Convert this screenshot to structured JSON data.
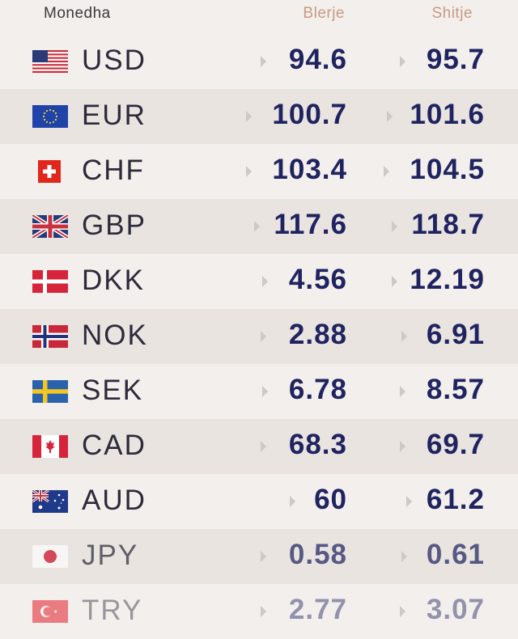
{
  "header": {
    "currency": "Monedha",
    "buy": "Blerje",
    "sell": "Shitje"
  },
  "rows": [
    {
      "code": "USD",
      "flag": "us-flag-icon",
      "buy": "94.6",
      "sell": "95.7"
    },
    {
      "code": "EUR",
      "flag": "eu-flag-icon",
      "buy": "100.7",
      "sell": "101.6"
    },
    {
      "code": "CHF",
      "flag": "ch-flag-icon",
      "buy": "103.4",
      "sell": "104.5"
    },
    {
      "code": "GBP",
      "flag": "gb-flag-icon",
      "buy": "117.6",
      "sell": "118.7"
    },
    {
      "code": "DKK",
      "flag": "dk-flag-icon",
      "buy": "4.56",
      "sell": "12.19"
    },
    {
      "code": "NOK",
      "flag": "no-flag-icon",
      "buy": "2.88",
      "sell": "6.91"
    },
    {
      "code": "SEK",
      "flag": "se-flag-icon",
      "buy": "6.78",
      "sell": "8.57"
    },
    {
      "code": "CAD",
      "flag": "ca-flag-icon",
      "buy": "68.3",
      "sell": "69.7"
    },
    {
      "code": "AUD",
      "flag": "au-flag-icon",
      "buy": "60",
      "sell": "61.2"
    },
    {
      "code": "JPY",
      "flag": "jp-flag-icon",
      "buy": "0.58",
      "sell": "0.61"
    },
    {
      "code": "TRY",
      "flag": "tr-flag-icon",
      "buy": "2.77",
      "sell": "3.07"
    }
  ],
  "colors": {
    "value": "#1f2360",
    "header_accent": "#c79a84",
    "row_alt": "#e9e4e0",
    "background": "#f3efec"
  }
}
